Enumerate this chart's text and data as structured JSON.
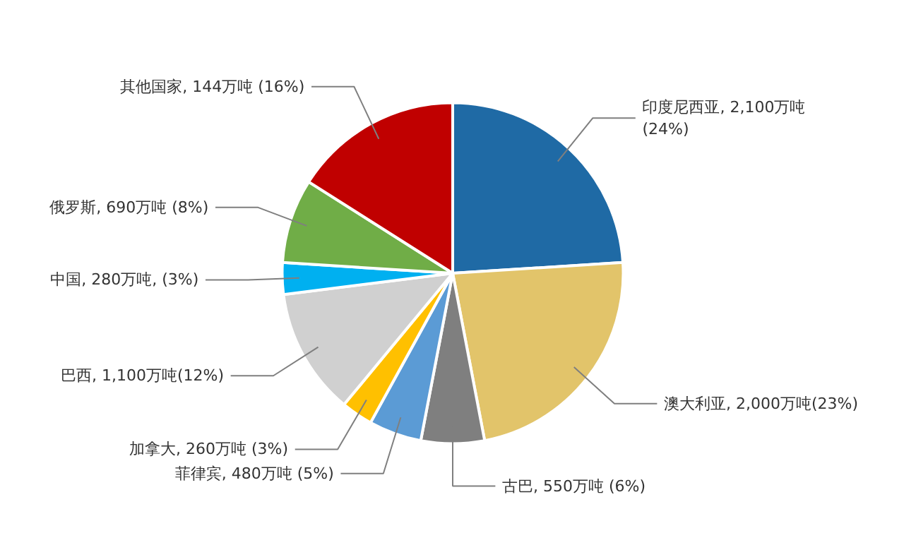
{
  "chart_data": {
    "type": "pie",
    "categories": [
      "印度尼西亚, 2,100万吨\n(24%)",
      "澳大利亚, 2,000万吨(23%)",
      "古巴, 550万吨 (6%)",
      "菲律宾, 480万吨 (5%)",
      "加拿大, 260万吨 (3%)",
      "巴西, 1,100万吨(12%)",
      "中国, 280万吨, (3%)",
      "俄罗斯, 690万吨 (8%)",
      "其他国家, 144万吨 (16%)"
    ],
    "values": [
      24,
      23,
      6,
      5,
      3,
      12,
      3,
      8,
      16
    ],
    "colors": [
      "#1f6aa5",
      "#e2c46a",
      "#7f7f7f",
      "#5b9bd5",
      "#ffc000",
      "#d0d0d0",
      "#00b0f0",
      "#70ad47",
      "#c00000"
    ]
  }
}
